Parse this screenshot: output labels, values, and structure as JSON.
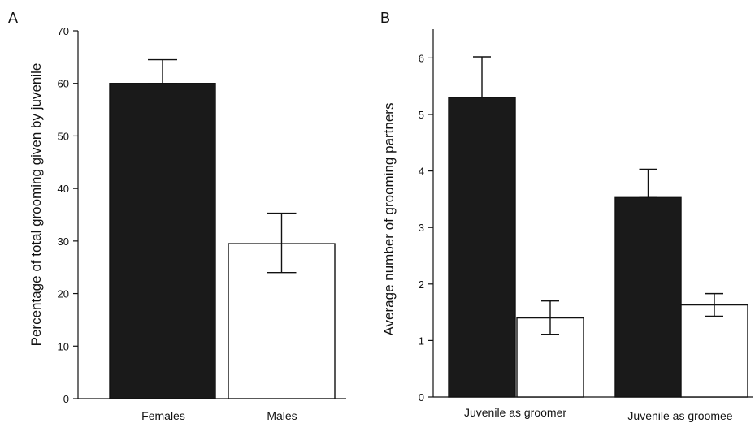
{
  "chart_data": [
    {
      "panel_letter": "A",
      "type": "bar",
      "ylabel": "Percentage of total grooming given by juvenile",
      "xlabel": "",
      "ylim": [
        0,
        70
      ],
      "yticks": [
        0,
        10,
        20,
        30,
        40,
        50,
        60,
        70
      ],
      "categories": [
        "Females",
        "Males"
      ],
      "values": [
        60,
        29.5
      ],
      "error_low": [
        60,
        24
      ],
      "error_high": [
        64.5,
        35.3
      ],
      "bar_colors": [
        "#1a1a1a",
        "#ffffff"
      ],
      "grid": false
    },
    {
      "panel_letter": "B",
      "type": "bar",
      "ylabel": "Average number of grooming partners",
      "xlabel": "",
      "ylim": [
        0,
        6.5
      ],
      "yticks": [
        0,
        1,
        2,
        3,
        4,
        5,
        6
      ],
      "categories": [
        "Juvenile as groomer",
        "Juvenile as groomee"
      ],
      "series": [
        {
          "values": [
            5.3,
            3.53
          ],
          "error_low": [
            5.3,
            3.53
          ],
          "error_high": [
            6.02,
            4.03
          ],
          "color": "#1a1a1a"
        },
        {
          "values": [
            1.4,
            1.63
          ],
          "error_low": [
            1.11,
            1.43
          ],
          "error_high": [
            1.7,
            1.83
          ],
          "color": "#ffffff"
        }
      ],
      "grid": false
    }
  ]
}
